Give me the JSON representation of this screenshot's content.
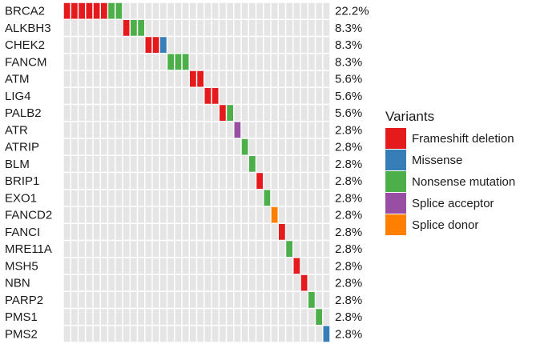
{
  "chart_data": {
    "type": "heatmap",
    "title": "",
    "xlabel": "",
    "ylabel": "",
    "n_samples": 36,
    "genes": [
      "BRCA2",
      "ALKBH3",
      "CHEK2",
      "FANCM",
      "ATM",
      "LIG4",
      "PALB2",
      "ATR",
      "ATRIP",
      "BLM",
      "BRIP1",
      "EXO1",
      "FANCD2",
      "FANCI",
      "MRE11A",
      "MSH5",
      "NBN",
      "PARP2",
      "PMS1",
      "PMS2"
    ],
    "percentages": [
      "22.2%",
      "8.3%",
      "8.3%",
      "8.3%",
      "5.6%",
      "5.6%",
      "5.6%",
      "2.8%",
      "2.8%",
      "2.8%",
      "2.8%",
      "2.8%",
      "2.8%",
      "2.8%",
      "2.8%",
      "2.8%",
      "2.8%",
      "2.8%",
      "2.8%",
      "2.8%"
    ],
    "variant_colors": {
      "Frameshift deletion": "#e41a1c",
      "Missense": "#377eb8",
      "Nonsense mutation": "#4daf4a",
      "Splice acceptor": "#984ea3",
      "Splice donor": "#ff7f00"
    },
    "empty_color": "#e5e5e5",
    "mutations": [
      {
        "gene": "BRCA2",
        "sample": 1,
        "variant": "Frameshift deletion"
      },
      {
        "gene": "BRCA2",
        "sample": 2,
        "variant": "Frameshift deletion"
      },
      {
        "gene": "BRCA2",
        "sample": 3,
        "variant": "Frameshift deletion"
      },
      {
        "gene": "BRCA2",
        "sample": 4,
        "variant": "Frameshift deletion"
      },
      {
        "gene": "BRCA2",
        "sample": 5,
        "variant": "Frameshift deletion"
      },
      {
        "gene": "BRCA2",
        "sample": 6,
        "variant": "Frameshift deletion"
      },
      {
        "gene": "BRCA2",
        "sample": 7,
        "variant": "Nonsense mutation"
      },
      {
        "gene": "BRCA2",
        "sample": 8,
        "variant": "Nonsense mutation"
      },
      {
        "gene": "ALKBH3",
        "sample": 9,
        "variant": "Frameshift deletion"
      },
      {
        "gene": "ALKBH3",
        "sample": 10,
        "variant": "Nonsense mutation"
      },
      {
        "gene": "ALKBH3",
        "sample": 11,
        "variant": "Nonsense mutation"
      },
      {
        "gene": "CHEK2",
        "sample": 12,
        "variant": "Frameshift deletion"
      },
      {
        "gene": "CHEK2",
        "sample": 13,
        "variant": "Frameshift deletion"
      },
      {
        "gene": "CHEK2",
        "sample": 14,
        "variant": "Missense"
      },
      {
        "gene": "FANCM",
        "sample": 15,
        "variant": "Nonsense mutation"
      },
      {
        "gene": "FANCM",
        "sample": 16,
        "variant": "Nonsense mutation"
      },
      {
        "gene": "FANCM",
        "sample": 17,
        "variant": "Nonsense mutation"
      },
      {
        "gene": "ATM",
        "sample": 18,
        "variant": "Frameshift deletion"
      },
      {
        "gene": "ATM",
        "sample": 19,
        "variant": "Frameshift deletion"
      },
      {
        "gene": "LIG4",
        "sample": 20,
        "variant": "Frameshift deletion"
      },
      {
        "gene": "LIG4",
        "sample": 21,
        "variant": "Frameshift deletion"
      },
      {
        "gene": "PALB2",
        "sample": 22,
        "variant": "Frameshift deletion"
      },
      {
        "gene": "PALB2",
        "sample": 23,
        "variant": "Nonsense mutation"
      },
      {
        "gene": "ATR",
        "sample": 24,
        "variant": "Splice acceptor"
      },
      {
        "gene": "ATRIP",
        "sample": 25,
        "variant": "Nonsense mutation"
      },
      {
        "gene": "BLM",
        "sample": 26,
        "variant": "Nonsense mutation"
      },
      {
        "gene": "BRIP1",
        "sample": 27,
        "variant": "Frameshift deletion"
      },
      {
        "gene": "EXO1",
        "sample": 28,
        "variant": "Nonsense mutation"
      },
      {
        "gene": "FANCD2",
        "sample": 29,
        "variant": "Splice donor"
      },
      {
        "gene": "FANCI",
        "sample": 30,
        "variant": "Frameshift deletion"
      },
      {
        "gene": "MRE11A",
        "sample": 31,
        "variant": "Nonsense mutation"
      },
      {
        "gene": "MSH5",
        "sample": 32,
        "variant": "Frameshift deletion"
      },
      {
        "gene": "NBN",
        "sample": 33,
        "variant": "Frameshift deletion"
      },
      {
        "gene": "PARP2",
        "sample": 34,
        "variant": "Nonsense mutation"
      },
      {
        "gene": "PMS1",
        "sample": 35,
        "variant": "Nonsense mutation"
      },
      {
        "gene": "PMS2",
        "sample": 36,
        "variant": "Missense"
      }
    ],
    "legend": {
      "title": "Variants",
      "position": "right",
      "items": [
        {
          "label": "Frameshift deletion",
          "color": "#e41a1c"
        },
        {
          "label": "Missense",
          "color": "#377eb8"
        },
        {
          "label": "Nonsense mutation",
          "color": "#4daf4a"
        },
        {
          "label": "Splice acceptor",
          "color": "#984ea3"
        },
        {
          "label": "Splice donor",
          "color": "#ff7f00"
        }
      ]
    }
  }
}
